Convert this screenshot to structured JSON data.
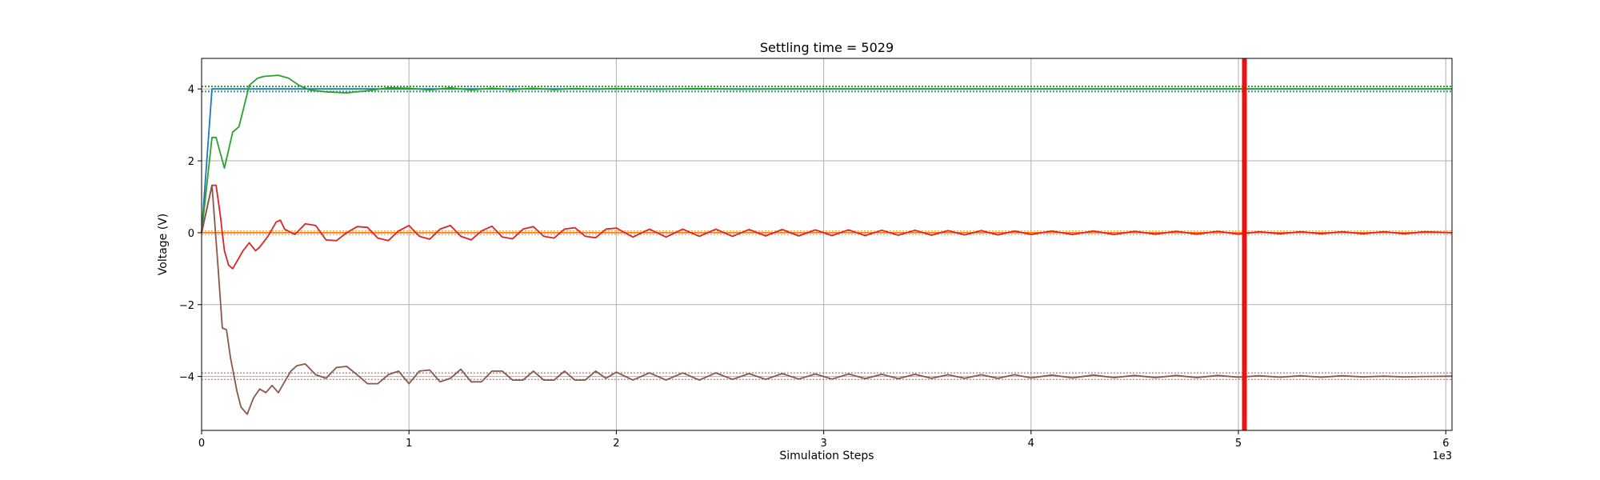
{
  "chart_data": {
    "type": "line",
    "title": "Settling time = 5029",
    "xlabel": "Simulation Steps",
    "ylabel": "Voltage (V)",
    "x_offset_label": "1e3",
    "xlim": [
      0,
      6.03
    ],
    "ylim": [
      -5.5,
      4.85
    ],
    "grid": true,
    "x_ticks": [
      0,
      1,
      2,
      3,
      4,
      5,
      6
    ],
    "x_tick_labels": [
      "0",
      "1",
      "2",
      "3",
      "4",
      "5",
      "6"
    ],
    "y_ticks": [
      -4,
      -2,
      0,
      2,
      4
    ],
    "y_tick_labels": [
      "−4",
      "−2",
      "0",
      "2",
      "4"
    ],
    "settling_marker": {
      "x": 5.029,
      "color": "#ee1111"
    },
    "reference_bands": [
      {
        "color": "#1f77b4",
        "values": [
          4.08,
          3.92
        ]
      },
      {
        "color": "#2ca02c",
        "values": [
          4.06,
          3.94
        ]
      },
      {
        "color": "#ff7f0e",
        "values": [
          0.05,
          -0.05
        ]
      },
      {
        "color": "#8c564b",
        "values": [
          -3.9,
          -4.08
        ]
      }
    ],
    "series": [
      {
        "color": "#1f77b4",
        "x": [
          0,
          0.05,
          0.1,
          0.2,
          0.5,
          1,
          2,
          3,
          4,
          5,
          6.03
        ],
        "y": [
          0,
          4.0,
          4.0,
          4.0,
          4.0,
          4.0,
          4.0,
          4.0,
          4.0,
          4.0,
          4.0
        ]
      },
      {
        "color": "#ff7f0e",
        "x": [
          0,
          0.5,
          1,
          2,
          3,
          4,
          5,
          6.03
        ],
        "y": [
          0,
          0,
          0,
          0,
          0,
          0,
          0,
          0
        ]
      },
      {
        "color": "#2ca02c",
        "x": [
          0,
          0.05,
          0.07,
          0.11,
          0.15,
          0.18,
          0.2,
          0.23,
          0.27,
          0.3,
          0.37,
          0.42,
          0.47,
          0.52,
          0.6,
          0.7,
          0.8,
          0.9,
          1.0,
          1.1,
          1.2,
          1.3,
          1.4,
          1.5,
          1.6,
          1.7,
          1.8,
          1.9,
          2.0,
          2.2,
          2.4,
          2.6,
          2.8,
          3.0,
          3.5,
          4.0,
          4.5,
          5.0,
          5.5,
          6.03
        ],
        "y": [
          0,
          2.65,
          2.65,
          1.8,
          2.8,
          2.95,
          3.4,
          4.1,
          4.3,
          4.35,
          4.38,
          4.3,
          4.1,
          3.97,
          3.92,
          3.89,
          3.95,
          4.03,
          4.02,
          3.97,
          4.03,
          3.97,
          4.02,
          3.98,
          4.02,
          3.98,
          4.01,
          3.99,
          4.01,
          3.99,
          4.01,
          3.99,
          4.0,
          4.0,
          4.0,
          4.0,
          4.0,
          4.0,
          4.0,
          4.0
        ]
      },
      {
        "color": "#d62728",
        "x": [
          0,
          0.05,
          0.07,
          0.09,
          0.11,
          0.13,
          0.15,
          0.2,
          0.23,
          0.26,
          0.28,
          0.32,
          0.36,
          0.38,
          0.4,
          0.45,
          0.5,
          0.55,
          0.6,
          0.65,
          0.7,
          0.75,
          0.8,
          0.85,
          0.9,
          0.95,
          1.0,
          1.05,
          1.1,
          1.15,
          1.2,
          1.25,
          1.3,
          1.35,
          1.4,
          1.45,
          1.5,
          1.55,
          1.6,
          1.65,
          1.7,
          1.75,
          1.8,
          1.85,
          1.9,
          1.95,
          2.0,
          2.08,
          2.16,
          2.24,
          2.32,
          2.4,
          2.48,
          2.56,
          2.64,
          2.72,
          2.8,
          2.88,
          2.96,
          3.04,
          3.12,
          3.2,
          3.28,
          3.36,
          3.44,
          3.52,
          3.6,
          3.68,
          3.76,
          3.84,
          3.92,
          4.0,
          4.1,
          4.2,
          4.3,
          4.4,
          4.5,
          4.6,
          4.7,
          4.8,
          4.9,
          5.0,
          5.1,
          5.2,
          5.3,
          5.4,
          5.5,
          5.6,
          5.7,
          5.8,
          5.9,
          6.03
        ],
        "y": [
          0,
          1.32,
          1.32,
          0.5,
          -0.5,
          -0.9,
          -1.0,
          -0.5,
          -0.28,
          -0.5,
          -0.4,
          -0.1,
          0.3,
          0.35,
          0.1,
          -0.05,
          0.25,
          0.2,
          -0.2,
          -0.22,
          0.0,
          0.17,
          0.15,
          -0.15,
          -0.22,
          0.05,
          0.2,
          -0.1,
          -0.18,
          0.1,
          0.2,
          -0.1,
          -0.2,
          0.05,
          0.18,
          -0.12,
          -0.17,
          0.1,
          0.17,
          -0.1,
          -0.15,
          0.1,
          0.14,
          -0.1,
          -0.14,
          0.1,
          0.13,
          -0.12,
          0.1,
          -0.12,
          0.1,
          -0.1,
          0.1,
          -0.1,
          0.09,
          -0.09,
          0.09,
          -0.09,
          0.08,
          -0.08,
          0.08,
          -0.08,
          0.07,
          -0.07,
          0.07,
          -0.07,
          0.06,
          -0.06,
          0.06,
          -0.06,
          0.05,
          -0.05,
          0.05,
          -0.05,
          0.05,
          -0.05,
          0.04,
          -0.04,
          0.04,
          -0.04,
          0.04,
          -0.04,
          0.03,
          -0.03,
          0.03,
          -0.03,
          0.03,
          -0.03,
          0.03,
          -0.03,
          0.03,
          0.0
        ]
      },
      {
        "color": "#8c564b",
        "x": [
          0,
          0.05,
          0.08,
          0.1,
          0.12,
          0.14,
          0.17,
          0.19,
          0.22,
          0.25,
          0.28,
          0.31,
          0.34,
          0.37,
          0.4,
          0.43,
          0.46,
          0.5,
          0.55,
          0.6,
          0.65,
          0.7,
          0.75,
          0.8,
          0.85,
          0.9,
          0.95,
          1.0,
          1.05,
          1.1,
          1.15,
          1.2,
          1.25,
          1.3,
          1.35,
          1.4,
          1.45,
          1.5,
          1.55,
          1.6,
          1.65,
          1.7,
          1.75,
          1.8,
          1.85,
          1.9,
          1.95,
          2.0,
          2.08,
          2.16,
          2.24,
          2.32,
          2.4,
          2.48,
          2.56,
          2.64,
          2.72,
          2.8,
          2.88,
          2.96,
          3.04,
          3.12,
          3.2,
          3.28,
          3.36,
          3.44,
          3.52,
          3.6,
          3.68,
          3.76,
          3.84,
          3.92,
          4.0,
          4.1,
          4.2,
          4.3,
          4.4,
          4.5,
          4.6,
          4.7,
          4.8,
          4.9,
          5.0,
          5.1,
          5.2,
          5.3,
          5.4,
          5.5,
          5.6,
          5.7,
          5.8,
          5.9,
          6.03
        ],
        "y": [
          0,
          1.32,
          -1.0,
          -2.65,
          -2.7,
          -3.5,
          -4.4,
          -4.85,
          -5.05,
          -4.6,
          -4.35,
          -4.45,
          -4.25,
          -4.45,
          -4.15,
          -3.85,
          -3.7,
          -3.65,
          -3.95,
          -4.05,
          -3.75,
          -3.72,
          -3.95,
          -4.2,
          -4.2,
          -3.95,
          -3.85,
          -4.2,
          -3.85,
          -3.82,
          -4.15,
          -4.05,
          -3.8,
          -4.15,
          -4.15,
          -3.85,
          -3.85,
          -4.1,
          -4.1,
          -3.85,
          -4.1,
          -4.1,
          -3.85,
          -4.1,
          -4.1,
          -3.85,
          -4.05,
          -3.88,
          -4.1,
          -3.9,
          -4.1,
          -3.9,
          -4.1,
          -3.9,
          -4.08,
          -3.92,
          -4.08,
          -3.92,
          -4.07,
          -3.93,
          -4.07,
          -3.93,
          -4.06,
          -3.94,
          -4.06,
          -3.94,
          -4.05,
          -3.95,
          -4.05,
          -3.95,
          -4.05,
          -3.95,
          -4.04,
          -3.96,
          -4.04,
          -3.96,
          -4.03,
          -3.97,
          -4.03,
          -3.97,
          -4.03,
          -3.97,
          -4.02,
          -3.98,
          -4.02,
          -3.98,
          -4.02,
          -3.98,
          -4.01,
          -3.99,
          -4.01,
          -4.0,
          -3.99
        ]
      }
    ]
  }
}
